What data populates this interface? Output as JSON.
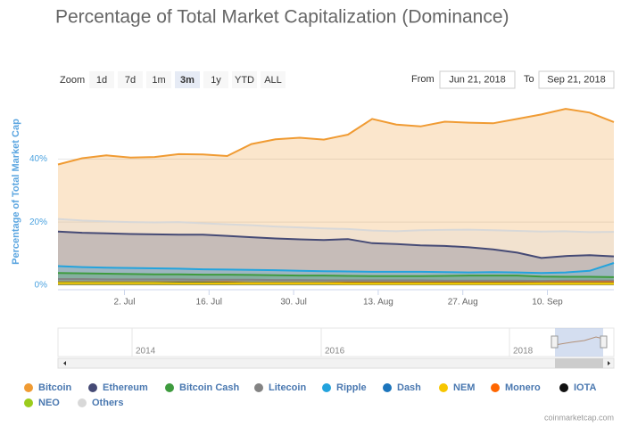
{
  "chart_data": {
    "type": "area",
    "title": "Percentage of Total Market Capitalization (Dominance)",
    "y_label": "Percentage of Total Market Cap",
    "x": [
      "2018-06-21",
      "2018-06-25",
      "2018-06-29",
      "2018-07-03",
      "2018-07-07",
      "2018-07-11",
      "2018-07-15",
      "2018-07-19",
      "2018-07-23",
      "2018-07-27",
      "2018-07-31",
      "2018-08-04",
      "2018-08-08",
      "2018-08-12",
      "2018-08-16",
      "2018-08-20",
      "2018-08-24",
      "2018-08-28",
      "2018-09-01",
      "2018-09-05",
      "2018-09-09",
      "2018-09-13",
      "2018-09-17",
      "2018-09-21"
    ],
    "xlim": [
      "2018-06-21",
      "2018-09-21"
    ],
    "xticks": [
      {
        "value": "2018-07-02",
        "label": "2. Jul"
      },
      {
        "value": "2018-07-16",
        "label": "16. Jul"
      },
      {
        "value": "2018-07-30",
        "label": "30. Jul"
      },
      {
        "value": "2018-08-13",
        "label": "13. Aug"
      },
      {
        "value": "2018-08-27",
        "label": "27. Aug"
      },
      {
        "value": "2018-09-10",
        "label": "10. Sep"
      }
    ],
    "ylim": [
      -1.5,
      58
    ],
    "yticks": [
      {
        "value": 0,
        "label": "0%"
      },
      {
        "value": 20,
        "label": "20%"
      },
      {
        "value": 40,
        "label": "40%"
      }
    ],
    "grid": true,
    "series": [
      {
        "name": "Bitcoin",
        "color": "#f09b33",
        "values": [
          38.3,
          40.3,
          41.2,
          40.5,
          40.7,
          41.6,
          41.5,
          41.0,
          44.8,
          46.3,
          46.8,
          46.2,
          47.8,
          52.8,
          51.0,
          50.4,
          51.9,
          51.6,
          51.4,
          52.8,
          54.2,
          56.0,
          54.8,
          51.8
        ]
      },
      {
        "name": "Ethereum",
        "color": "#454a75",
        "values": [
          17.0,
          16.6,
          16.4,
          16.2,
          16.1,
          16.0,
          16.0,
          15.6,
          15.2,
          14.8,
          14.5,
          14.3,
          14.6,
          13.3,
          13.0,
          12.6,
          12.4,
          12.0,
          11.3,
          10.3,
          8.6,
          9.2,
          9.5,
          9.1
        ]
      },
      {
        "name": "Bitcoin Cash",
        "color": "#3e9b3e",
        "values": [
          3.8,
          3.7,
          3.6,
          3.5,
          3.4,
          3.4,
          3.3,
          3.3,
          3.2,
          3.1,
          3.0,
          3.0,
          2.9,
          2.8,
          2.8,
          2.8,
          2.9,
          3.0,
          3.0,
          3.0,
          2.7,
          2.6,
          2.6,
          2.5
        ]
      },
      {
        "name": "Litecoin",
        "color": "#838383",
        "values": [
          1.9,
          1.9,
          1.8,
          1.8,
          1.8,
          1.8,
          1.7,
          1.7,
          1.7,
          1.6,
          1.6,
          1.5,
          1.5,
          1.5,
          1.5,
          1.5,
          1.4,
          1.4,
          1.4,
          1.4,
          1.3,
          1.4,
          1.4,
          1.4
        ]
      },
      {
        "name": "Ripple",
        "color": "#23a3dd",
        "values": [
          6.0,
          5.7,
          5.5,
          5.4,
          5.3,
          5.2,
          5.0,
          4.9,
          4.8,
          4.7,
          4.5,
          4.4,
          4.3,
          4.2,
          4.2,
          4.2,
          4.1,
          4.0,
          4.1,
          4.0,
          3.8,
          4.0,
          4.5,
          7.0
        ]
      },
      {
        "name": "Dash",
        "color": "#1c75bc",
        "values": [
          0.8,
          0.8,
          0.8,
          0.8,
          0.8,
          0.8,
          0.8,
          0.7,
          0.7,
          0.7,
          0.7,
          0.7,
          0.6,
          0.6,
          0.6,
          0.6,
          0.6,
          0.6,
          0.6,
          0.6,
          0.6,
          0.6,
          0.6,
          0.6
        ]
      },
      {
        "name": "NEM",
        "color": "#f7c600",
        "values": [
          0.6,
          0.6,
          0.6,
          0.6,
          0.6,
          0.5,
          0.5,
          0.5,
          0.5,
          0.5,
          0.5,
          0.5,
          0.4,
          0.4,
          0.4,
          0.4,
          0.4,
          0.4,
          0.4,
          0.4,
          0.4,
          0.4,
          0.4,
          0.4
        ]
      },
      {
        "name": "Monero",
        "color": "#ff6600",
        "values": [
          0.9,
          0.9,
          0.9,
          0.9,
          0.9,
          0.9,
          0.9,
          0.9,
          0.8,
          0.8,
          0.8,
          0.8,
          0.8,
          0.8,
          0.8,
          0.8,
          0.8,
          0.8,
          0.8,
          0.8,
          0.8,
          0.9,
          0.9,
          0.9
        ]
      },
      {
        "name": "IOTA",
        "color": "#111111",
        "values": [
          0.7,
          0.7,
          0.7,
          0.7,
          0.7,
          0.7,
          0.7,
          0.7,
          0.6,
          0.6,
          0.6,
          0.6,
          0.6,
          0.6,
          0.6,
          0.6,
          0.6,
          0.6,
          0.6,
          0.6,
          0.5,
          0.5,
          0.5,
          0.5
        ]
      },
      {
        "name": "NEO",
        "color": "#9bcc1c",
        "values": [
          0.7,
          0.7,
          0.7,
          0.7,
          0.7,
          0.6,
          0.6,
          0.6,
          0.6,
          0.6,
          0.6,
          0.6,
          0.5,
          0.5,
          0.5,
          0.5,
          0.5,
          0.5,
          0.5,
          0.5,
          0.5,
          0.5,
          0.5,
          0.5
        ]
      },
      {
        "name": "Others",
        "color": "#d8d8d8",
        "values": [
          21.0,
          20.5,
          20.2,
          20.0,
          19.9,
          20.0,
          19.6,
          19.3,
          19.0,
          18.6,
          18.3,
          18.0,
          17.8,
          17.3,
          17.1,
          17.4,
          17.5,
          17.6,
          17.4,
          17.2,
          17.0,
          17.1,
          16.8,
          16.9
        ]
      }
    ]
  },
  "range_selector": {
    "label": "Zoom",
    "buttons": [
      "1d",
      "7d",
      "1m",
      "3m",
      "1y",
      "YTD",
      "ALL"
    ],
    "selected": "3m",
    "from_label": "From",
    "from": "Jun 21, 2018",
    "to_label": "To",
    "to": "Sep 21, 2018"
  },
  "navigator": {
    "labels": [
      "2014",
      "2016",
      "2018"
    ]
  },
  "credit": "coinmarketcap.com"
}
